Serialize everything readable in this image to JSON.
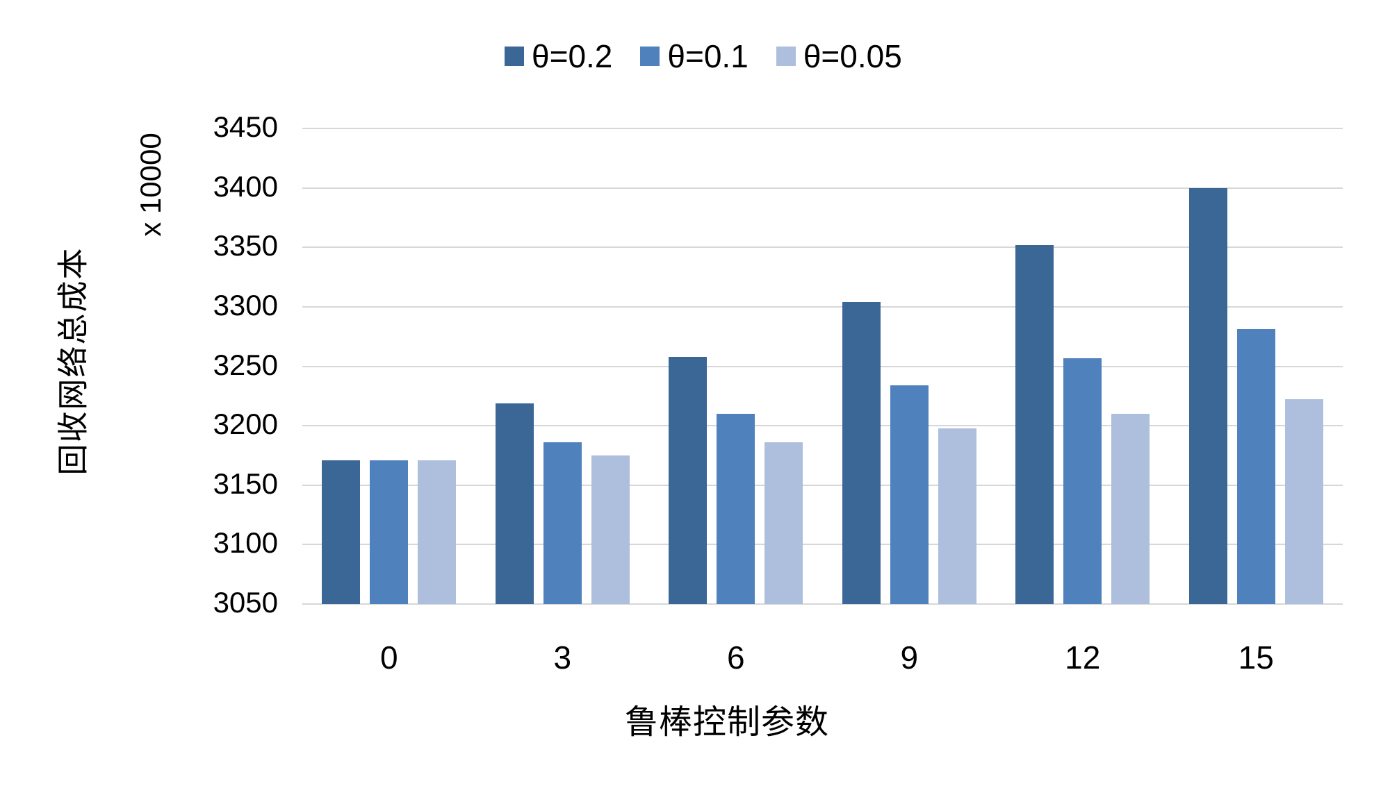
{
  "chart_data": {
    "type": "bar",
    "title": "",
    "categories": [
      "0",
      "3",
      "6",
      "9",
      "12",
      "15"
    ],
    "series": [
      {
        "name": "θ=0.2",
        "color": "#3A6795",
        "values": [
          3171,
          3219,
          3258,
          3304,
          3352,
          3400
        ]
      },
      {
        "name": "θ=0.1",
        "color": "#4F81BD",
        "values": [
          3171,
          3186,
          3210,
          3234,
          3257,
          3281
        ]
      },
      {
        "name": "θ=0.05",
        "color": "#ADBFDD",
        "values": [
          3171,
          3175,
          3186,
          3198,
          3210,
          3222
        ]
      }
    ],
    "xlabel": "鲁棒控制参数",
    "ylabel": "回收网络总成本",
    "y_multiplier_label": "x 10000",
    "ylim": [
      3050,
      3450
    ],
    "ytick_step": 50,
    "yticks": [
      3050,
      3100,
      3150,
      3200,
      3250,
      3300,
      3350,
      3400,
      3450
    ],
    "grid": true,
    "gridline_color": "#D7D7D7",
    "background_color": "#FFFFFF",
    "text_color": "#000000",
    "legend_position": "top"
  }
}
